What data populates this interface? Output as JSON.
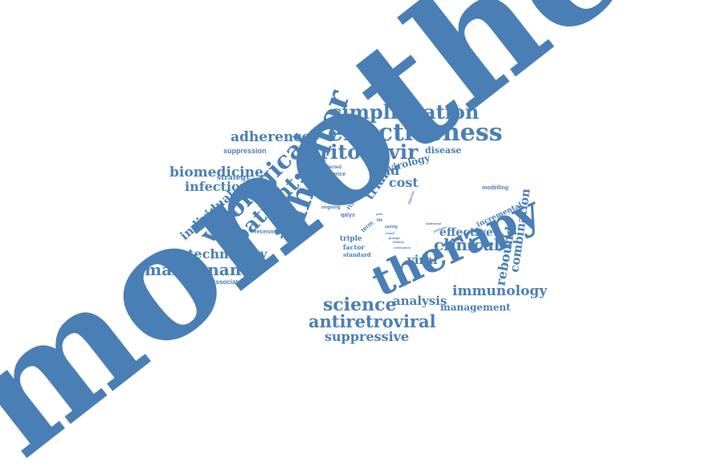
{
  "color": "#4a7fb5",
  "words": [
    "monotherapy",
    "therapy",
    "inhibitor",
    "virological",
    "patient",
    "simplification",
    "effectiveness",
    "ritonavir",
    "adherence",
    "suppression",
    "biomedicine",
    "infectious",
    "strategy",
    "individual",
    "technology",
    "maintenance",
    "associated",
    "receiving",
    "load",
    "trial",
    "cost",
    "virology",
    "disease",
    "infected",
    "evidence",
    "failure",
    "risk",
    "ongoing",
    "qalys",
    "triple",
    "factor",
    "standard",
    "viral",
    "clinical",
    "effective",
    "rebound",
    "combination",
    "incremental",
    "modelling",
    "immunology",
    "management",
    "analysis",
    "science",
    "antiretroviral",
    "suppressive",
    "additional",
    "conclusion",
    "year",
    "life",
    "saving",
    "result",
    "lifetime",
    "positive",
    "term",
    "participant",
    "objective",
    "prompt",
    "predictor"
  ]
}
